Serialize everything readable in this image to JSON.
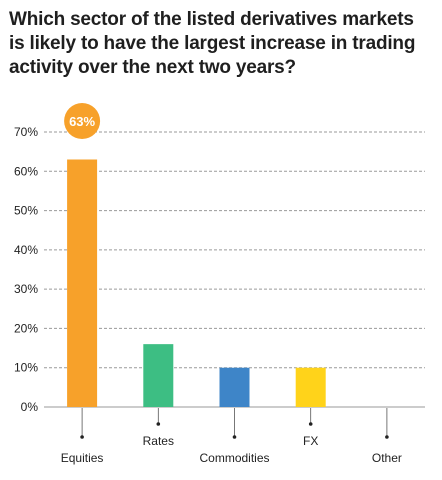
{
  "title_lines": [
    "Which sector of the listed derivatives markets",
    "is likely to have the largest increase in trading",
    "activity over the next two years?"
  ],
  "chart_data": {
    "type": "bar",
    "title": "Which sector of the listed derivatives markets is likely to have the largest increase in trading activity over the next two years?",
    "categories": [
      "Equities",
      "Rates",
      "Commodities",
      "FX",
      "Other"
    ],
    "values": [
      63,
      16,
      10,
      10,
      0
    ],
    "colors": [
      "#F7A12A",
      "#3DBE83",
      "#3E85C8",
      "#FFD31A",
      "#CCCCCC"
    ],
    "yticks": [
      "0%",
      "10%",
      "20%",
      "30%",
      "40%",
      "50%",
      "60%",
      "70%"
    ],
    "ylim": [
      0,
      70
    ],
    "grid": true,
    "grid_style": "dashed",
    "callout": {
      "label": "63%",
      "category": "Equities",
      "color": "#F7A12A"
    },
    "xlabel": "",
    "ylabel": ""
  }
}
